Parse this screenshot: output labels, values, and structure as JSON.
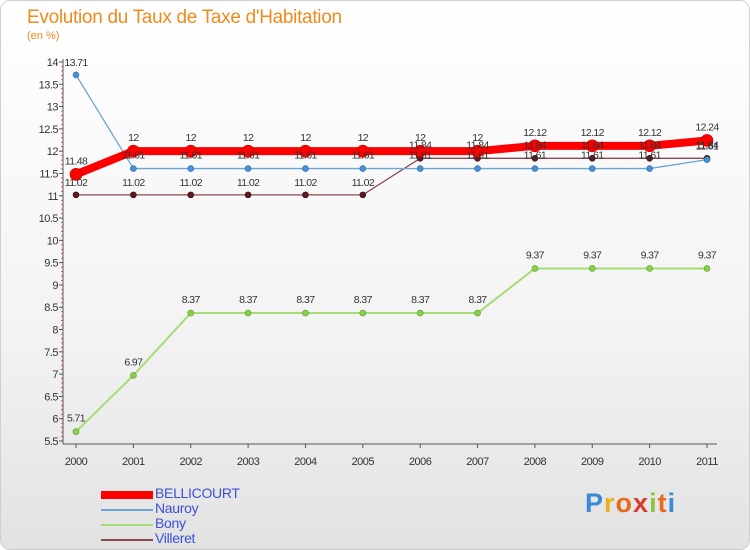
{
  "title": "Evolution du Taux de Taxe d'Habitation",
  "subtitle": "(en %)",
  "logo": {
    "letters": [
      "P",
      "r",
      "o",
      "x",
      "i",
      "t",
      "i"
    ],
    "colors": [
      "#3a8ad8",
      "#e8b21c",
      "#e86a1c",
      "#d93b2b",
      "#8cc63e",
      "#e86a1c",
      "#3a8ad8"
    ]
  },
  "chart_data": {
    "type": "line",
    "x": [
      "2000",
      "2001",
      "2002",
      "2003",
      "2004",
      "2005",
      "2006",
      "2007",
      "2008",
      "2009",
      "2010",
      "2011"
    ],
    "ylim": [
      5.5,
      14
    ],
    "yticks": [
      "5.5",
      "6",
      "6.5",
      "7",
      "7.5",
      "8",
      "8.5",
      "9",
      "9.5",
      "10",
      "10.5",
      "11",
      "11.5",
      "12",
      "12.5",
      "13",
      "13.5",
      "14"
    ],
    "grid": false,
    "legend_position": "bottom-left",
    "series": [
      {
        "name": "BELLICOURT",
        "color": "#ff0000",
        "values": [
          11.48,
          12,
          12,
          12,
          12,
          12,
          12,
          12,
          12.12,
          12.12,
          12.12,
          12.24
        ],
        "labels": [
          "11.48",
          "12",
          "12",
          "12",
          "12",
          "12",
          "12",
          "12",
          "12.12",
          "12.12",
          "12.12",
          "12.24"
        ]
      },
      {
        "name": "Nauroy",
        "color": "#6aa6d8",
        "values": [
          13.71,
          11.61,
          11.61,
          11.61,
          11.61,
          11.61,
          11.61,
          11.61,
          11.61,
          11.61,
          11.61,
          11.81
        ],
        "labels": [
          "13.71",
          "11.61",
          "11.61",
          "11.61",
          "11.61",
          "11.61",
          "11.61",
          "11.61",
          "11.61",
          "11.61",
          "11.61",
          "11.81"
        ]
      },
      {
        "name": "Bony",
        "color": "#a6dc76",
        "values": [
          5.71,
          6.97,
          8.37,
          8.37,
          8.37,
          8.37,
          8.37,
          8.37,
          9.37,
          9.37,
          9.37,
          9.37
        ],
        "labels": [
          "5.71",
          "6.97",
          "8.37",
          "8.37",
          "8.37",
          "8.37",
          "8.37",
          "8.37",
          "9.37",
          "9.37",
          "9.37",
          "9.37"
        ]
      },
      {
        "name": "Villeret",
        "color": "#8a4a50",
        "values": [
          11.02,
          11.02,
          11.02,
          11.02,
          11.02,
          11.02,
          11.84,
          11.84,
          11.84,
          11.84,
          11.84,
          11.84
        ],
        "labels": [
          "11.02",
          "11.02",
          "11.02",
          "11.02",
          "11.02",
          "11.02",
          "11.84",
          "11.84",
          "11.84",
          "11.84",
          "11.84",
          "11.84"
        ]
      }
    ]
  }
}
